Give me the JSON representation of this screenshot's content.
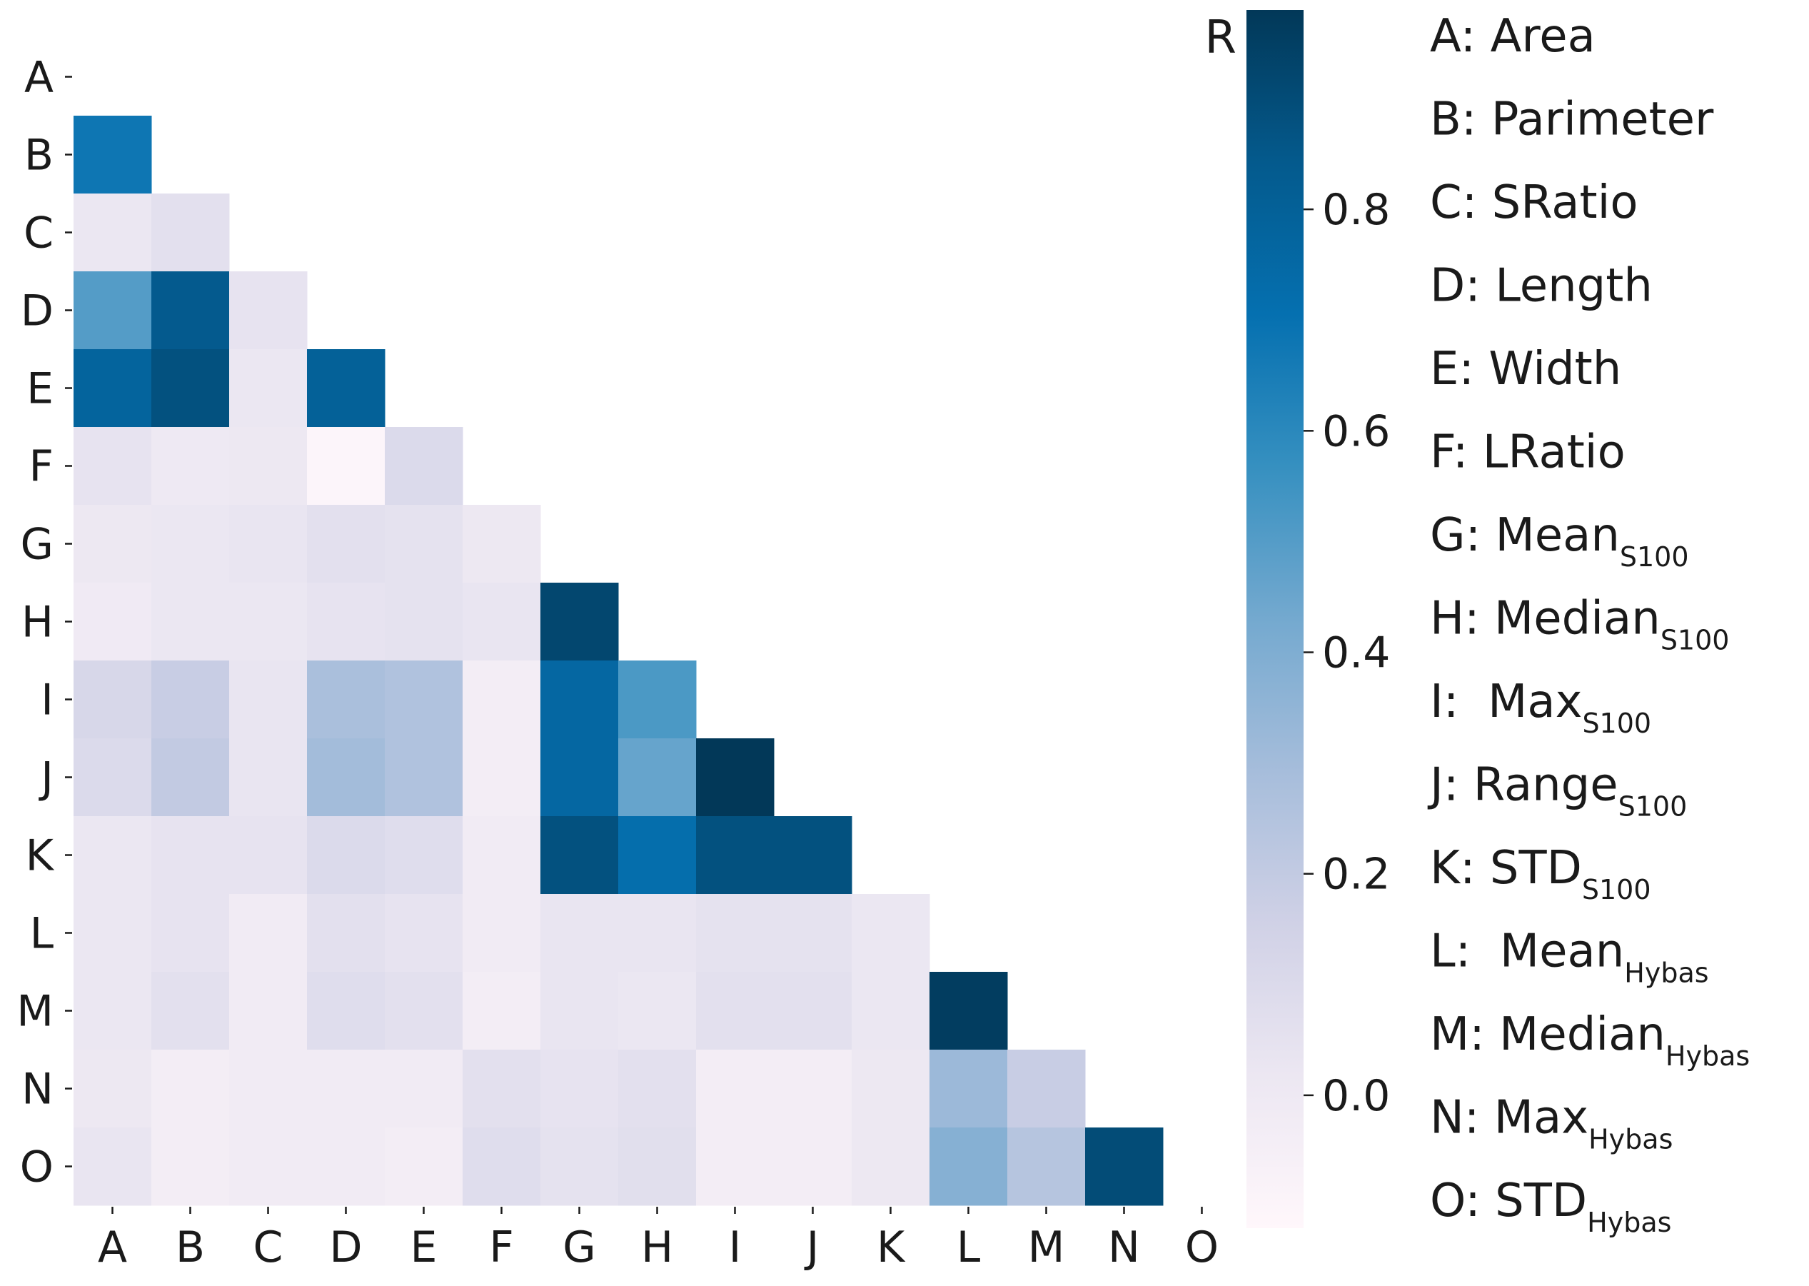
{
  "chart_data": {
    "type": "heatmap",
    "labels": [
      "A",
      "B",
      "C",
      "D",
      "E",
      "F",
      "G",
      "H",
      "I",
      "J",
      "K",
      "L",
      "M",
      "N",
      "O"
    ],
    "lower_triangle_only": true,
    "values": [
      [],
      [
        0.68
      ],
      [
        0.02,
        0.06
      ],
      [
        0.5,
        0.84,
        0.04
      ],
      [
        0.78,
        0.88,
        0.02,
        0.8
      ],
      [
        0.04,
        0.0,
        0.01,
        -0.1,
        0.1
      ],
      [
        0.01,
        0.02,
        0.03,
        0.06,
        0.05,
        0.01
      ],
      [
        -0.01,
        0.02,
        0.02,
        0.04,
        0.05,
        0.03,
        0.92
      ],
      [
        0.12,
        0.18,
        0.03,
        0.28,
        0.26,
        -0.03,
        0.76,
        0.52
      ],
      [
        0.1,
        0.2,
        0.03,
        0.3,
        0.26,
        -0.03,
        0.76,
        0.46,
        0.99
      ],
      [
        0.02,
        0.04,
        0.04,
        0.1,
        0.08,
        -0.02,
        0.88,
        0.72,
        0.88,
        0.88
      ],
      [
        0.02,
        0.04,
        -0.02,
        0.06,
        0.04,
        -0.02,
        0.03,
        0.03,
        0.05,
        0.05,
        0.02
      ],
      [
        0.02,
        0.06,
        -0.02,
        0.08,
        0.06,
        -0.03,
        0.03,
        0.02,
        0.06,
        0.06,
        0.02,
        0.96
      ],
      [
        0.01,
        -0.03,
        -0.02,
        -0.02,
        -0.02,
        0.06,
        0.04,
        0.06,
        -0.03,
        -0.03,
        0.01,
        0.32,
        0.18
      ],
      [
        0.03,
        -0.03,
        -0.02,
        -0.02,
        -0.03,
        0.08,
        0.05,
        0.07,
        -0.03,
        -0.03,
        0.01,
        0.38,
        0.24,
        0.9
      ]
    ],
    "colorbar": {
      "title": "R",
      "range": [
        -0.12,
        0.98
      ],
      "ticks": [
        0.0,
        0.2,
        0.4,
        0.6,
        0.8
      ],
      "tick_labels": [
        "0.0",
        "0.2",
        "0.4",
        "0.6",
        "0.8"
      ],
      "colormap": "PuBu",
      "stops": [
        "#fff7fb",
        "#ece7f2",
        "#d0d1e6",
        "#a6bddb",
        "#74a9cf",
        "#3690c0",
        "#0570b0",
        "#045a8d",
        "#023858"
      ]
    },
    "legend": [
      {
        "text": "A: Area",
        "sub": ""
      },
      {
        "text": "B: Parimeter",
        "sub": ""
      },
      {
        "text": "C: SRatio",
        "sub": ""
      },
      {
        "text": "D: Length",
        "sub": ""
      },
      {
        "text": "E: Width",
        "sub": ""
      },
      {
        "text": "F: LRatio",
        "sub": ""
      },
      {
        "text": "G: Mean",
        "sub": "S100"
      },
      {
        "text": "H: Median",
        "sub": "S100"
      },
      {
        "text": "I:  Max",
        "sub": "S100"
      },
      {
        "text": "J: Range",
        "sub": "S100"
      },
      {
        "text": "K: STD",
        "sub": "S100"
      },
      {
        "text": "L:  Mean",
        "sub": "Hybas"
      },
      {
        "text": "M: Median",
        "sub": "Hybas"
      },
      {
        "text": "N: Max",
        "sub": "Hybas"
      },
      {
        "text": "O: STD",
        "sub": "Hybas"
      }
    ]
  }
}
